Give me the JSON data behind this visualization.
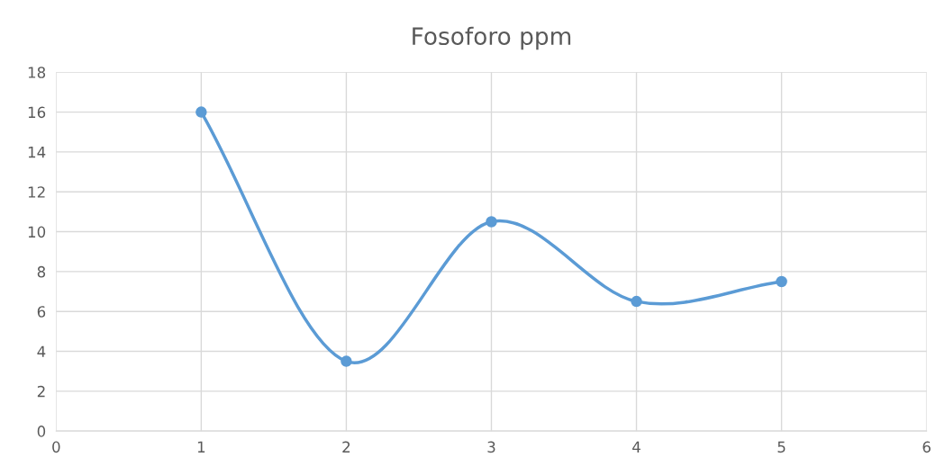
{
  "chart_data": {
    "type": "line",
    "title": "Fosoforo ppm",
    "x": [
      1,
      2,
      3,
      4,
      5
    ],
    "series": [
      {
        "color": "#5b9bd5",
        "values": [
          16,
          3.5,
          10.5,
          6.5,
          7.5
        ]
      }
    ],
    "xlim": [
      0,
      6
    ],
    "xticks": [
      0,
      1,
      2,
      3,
      4,
      5,
      6
    ],
    "ylim": [
      0,
      18
    ],
    "yticks": [
      0,
      2,
      4,
      6,
      8,
      10,
      12,
      14,
      16,
      18
    ],
    "grid": true,
    "marker": "circle",
    "line_style": "solid"
  }
}
